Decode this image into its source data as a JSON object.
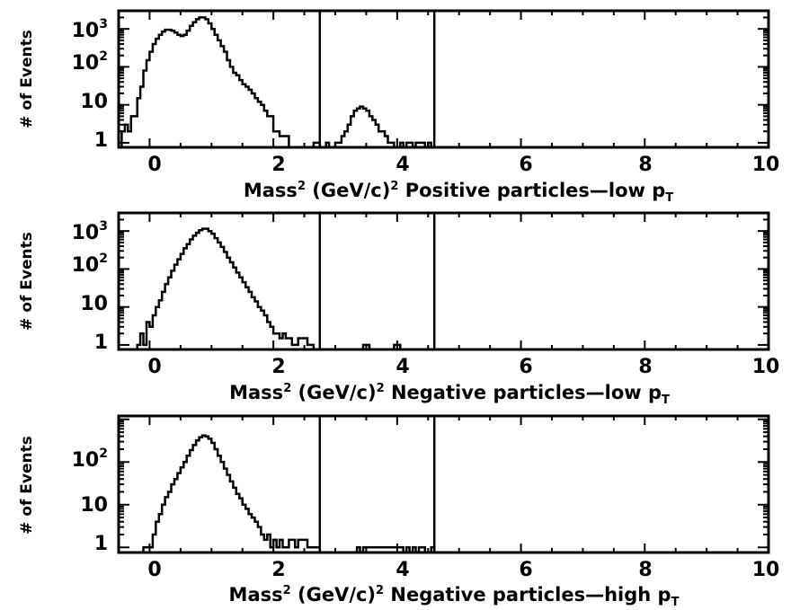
{
  "chart_data": [
    {
      "type": "histogram",
      "xlabel": "Mass² (GeV/c)² Positive particles—low pT",
      "xlabel_parts": {
        "a": "Mass",
        "b": "2",
        "c": " (GeV/c)",
        "d": "2",
        "e": " Positive particles—low p",
        "f": "T"
      },
      "ylabel": "# of Events",
      "xlim": [
        -0.5,
        10
      ],
      "ylim": [
        1,
        3000
      ],
      "log_y": true,
      "x_ticks": [
        "0",
        "2",
        "4",
        "6",
        "8",
        "10"
      ],
      "y_ticks": [
        {
          "base": "10",
          "exp": "3"
        },
        {
          "base": "10",
          "exp": "2"
        },
        {
          "base": "10",
          "exp": ""
        },
        {
          "base": "1",
          "exp": ""
        }
      ],
      "cut_lines": [
        2.75,
        4.6
      ],
      "bin_width": 0.05,
      "bins": [
        [
          -0.45,
          2
        ],
        [
          -0.4,
          3
        ],
        [
          -0.35,
          2
        ],
        [
          -0.3,
          5
        ],
        [
          -0.25,
          5
        ],
        [
          -0.2,
          15
        ],
        [
          -0.15,
          30
        ],
        [
          -0.1,
          80
        ],
        [
          -0.05,
          150
        ],
        [
          0.0,
          250
        ],
        [
          0.05,
          400
        ],
        [
          0.1,
          550
        ],
        [
          0.15,
          700
        ],
        [
          0.2,
          850
        ],
        [
          0.25,
          950
        ],
        [
          0.3,
          950
        ],
        [
          0.35,
          900
        ],
        [
          0.4,
          800
        ],
        [
          0.45,
          700
        ],
        [
          0.5,
          650
        ],
        [
          0.55,
          700
        ],
        [
          0.6,
          900
        ],
        [
          0.65,
          1200
        ],
        [
          0.7,
          1500
        ],
        [
          0.75,
          1800
        ],
        [
          0.8,
          2000
        ],
        [
          0.85,
          2000
        ],
        [
          0.9,
          1800
        ],
        [
          0.95,
          1400
        ],
        [
          1.0,
          1000
        ],
        [
          1.05,
          700
        ],
        [
          1.1,
          500
        ],
        [
          1.15,
          350
        ],
        [
          1.2,
          250
        ],
        [
          1.25,
          150
        ],
        [
          1.3,
          100
        ],
        [
          1.35,
          70
        ],
        [
          1.4,
          60
        ],
        [
          1.45,
          45
        ],
        [
          1.5,
          35
        ],
        [
          1.55,
          30
        ],
        [
          1.6,
          25
        ],
        [
          1.65,
          20
        ],
        [
          1.7,
          15
        ],
        [
          1.75,
          12
        ],
        [
          1.8,
          10
        ],
        [
          1.85,
          7
        ],
        [
          1.9,
          5
        ],
        [
          1.95,
          5
        ],
        [
          2.0,
          2
        ],
        [
          2.05,
          2
        ],
        [
          2.1,
          1.5
        ],
        [
          2.15,
          1.5
        ],
        [
          2.2,
          1.5
        ],
        [
          2.65,
          1
        ],
        [
          2.7,
          1
        ],
        [
          2.85,
          1
        ],
        [
          3.0,
          1
        ],
        [
          3.05,
          1
        ],
        [
          3.1,
          1.5
        ],
        [
          3.15,
          2
        ],
        [
          3.2,
          3
        ],
        [
          3.25,
          5
        ],
        [
          3.3,
          7
        ],
        [
          3.35,
          8
        ],
        [
          3.4,
          9
        ],
        [
          3.45,
          8
        ],
        [
          3.5,
          7
        ],
        [
          3.55,
          5
        ],
        [
          3.6,
          4
        ],
        [
          3.65,
          3
        ],
        [
          3.7,
          2
        ],
        [
          3.75,
          2
        ],
        [
          3.8,
          1.5
        ],
        [
          3.85,
          1
        ],
        [
          3.9,
          1
        ],
        [
          4.05,
          1
        ],
        [
          4.15,
          1
        ],
        [
          4.2,
          1
        ],
        [
          4.3,
          1
        ],
        [
          4.35,
          1
        ],
        [
          4.4,
          1
        ],
        [
          4.5,
          1
        ]
      ]
    },
    {
      "type": "histogram",
      "xlabel": "Mass² (GeV/c)² Negative particles—low pT",
      "xlabel_parts": {
        "a": "Mass",
        "b": "2",
        "c": " (GeV/c)",
        "d": "2",
        "e": " Negative particles—low p",
        "f": "T"
      },
      "ylabel": "# of Events",
      "xlim": [
        -0.5,
        10
      ],
      "ylim": [
        1,
        3000
      ],
      "log_y": true,
      "x_ticks": [
        "0",
        "2",
        "4",
        "6",
        "8",
        "10"
      ],
      "y_ticks": [
        {
          "base": "10",
          "exp": "3"
        },
        {
          "base": "10",
          "exp": "2"
        },
        {
          "base": "10",
          "exp": ""
        },
        {
          "base": "1",
          "exp": ""
        }
      ],
      "cut_lines": [
        2.75,
        4.6
      ],
      "bin_width": 0.05,
      "bins": [
        [
          -0.2,
          1
        ],
        [
          -0.15,
          2
        ],
        [
          -0.1,
          1
        ],
        [
          -0.05,
          4
        ],
        [
          0.0,
          3
        ],
        [
          0.05,
          6
        ],
        [
          0.1,
          10
        ],
        [
          0.15,
          15
        ],
        [
          0.2,
          25
        ],
        [
          0.25,
          40
        ],
        [
          0.3,
          60
        ],
        [
          0.35,
          90
        ],
        [
          0.4,
          130
        ],
        [
          0.45,
          180
        ],
        [
          0.5,
          250
        ],
        [
          0.55,
          350
        ],
        [
          0.6,
          450
        ],
        [
          0.65,
          600
        ],
        [
          0.7,
          750
        ],
        [
          0.75,
          900
        ],
        [
          0.8,
          1050
        ],
        [
          0.85,
          1150
        ],
        [
          0.9,
          1150
        ],
        [
          0.95,
          1000
        ],
        [
          1.0,
          850
        ],
        [
          1.05,
          650
        ],
        [
          1.1,
          500
        ],
        [
          1.15,
          380
        ],
        [
          1.2,
          280
        ],
        [
          1.25,
          200
        ],
        [
          1.3,
          150
        ],
        [
          1.35,
          110
        ],
        [
          1.4,
          80
        ],
        [
          1.45,
          60
        ],
        [
          1.5,
          45
        ],
        [
          1.55,
          33
        ],
        [
          1.6,
          25
        ],
        [
          1.65,
          18
        ],
        [
          1.7,
          14
        ],
        [
          1.75,
          10
        ],
        [
          1.8,
          8
        ],
        [
          1.85,
          6
        ],
        [
          1.9,
          4
        ],
        [
          1.95,
          3
        ],
        [
          2.0,
          2
        ],
        [
          2.05,
          2
        ],
        [
          2.1,
          1.5
        ],
        [
          2.15,
          2
        ],
        [
          2.2,
          1.5
        ],
        [
          2.25,
          1.5
        ],
        [
          2.3,
          1
        ],
        [
          2.35,
          1
        ],
        [
          2.4,
          1.5
        ],
        [
          2.45,
          1.5
        ],
        [
          2.5,
          1.5
        ],
        [
          2.55,
          1
        ],
        [
          2.6,
          1
        ],
        [
          3.45,
          1
        ],
        [
          3.5,
          1
        ],
        [
          3.95,
          1
        ],
        [
          4.0,
          1
        ]
      ]
    },
    {
      "type": "histogram",
      "xlabel": "Mass² (GeV/c)² Negative particles—high pT",
      "xlabel_parts": {
        "a": "Mass",
        "b": "2",
        "c": " (GeV/c)",
        "d": "2",
        "e": " Negative particles—high p",
        "f": "T"
      },
      "ylabel": "# of Events",
      "xlim": [
        -0.5,
        10
      ],
      "ylim": [
        1,
        1200
      ],
      "log_y": true,
      "x_ticks": [
        "0",
        "2",
        "4",
        "6",
        "8",
        "10"
      ],
      "y_ticks": [
        {
          "base": "10",
          "exp": "2"
        },
        {
          "base": "10",
          "exp": ""
        },
        {
          "base": "1",
          "exp": ""
        }
      ],
      "cut_lines": [
        2.75,
        4.6
      ],
      "bin_width": 0.05,
      "bins": [
        [
          -0.1,
          1
        ],
        [
          -0.05,
          1
        ],
        [
          0.0,
          1
        ],
        [
          0.05,
          2
        ],
        [
          0.1,
          4
        ],
        [
          0.15,
          6
        ],
        [
          0.2,
          10
        ],
        [
          0.25,
          15
        ],
        [
          0.3,
          20
        ],
        [
          0.35,
          30
        ],
        [
          0.4,
          40
        ],
        [
          0.45,
          55
        ],
        [
          0.5,
          75
        ],
        [
          0.55,
          100
        ],
        [
          0.6,
          140
        ],
        [
          0.65,
          190
        ],
        [
          0.7,
          250
        ],
        [
          0.75,
          320
        ],
        [
          0.8,
          380
        ],
        [
          0.85,
          420
        ],
        [
          0.9,
          400
        ],
        [
          0.95,
          350
        ],
        [
          1.0,
          280
        ],
        [
          1.05,
          200
        ],
        [
          1.1,
          140
        ],
        [
          1.15,
          100
        ],
        [
          1.2,
          70
        ],
        [
          1.25,
          50
        ],
        [
          1.3,
          35
        ],
        [
          1.35,
          25
        ],
        [
          1.4,
          18
        ],
        [
          1.45,
          14
        ],
        [
          1.5,
          10
        ],
        [
          1.55,
          8
        ],
        [
          1.6,
          6
        ],
        [
          1.65,
          5
        ],
        [
          1.7,
          4
        ],
        [
          1.75,
          3
        ],
        [
          1.8,
          2
        ],
        [
          1.85,
          1.5
        ],
        [
          1.9,
          2
        ],
        [
          1.95,
          1
        ],
        [
          2.0,
          1.5
        ],
        [
          2.05,
          1
        ],
        [
          2.1,
          1.5
        ],
        [
          2.15,
          1
        ],
        [
          2.2,
          1
        ],
        [
          2.25,
          1.5
        ],
        [
          2.3,
          1.5
        ],
        [
          2.35,
          1
        ],
        [
          2.4,
          1.5
        ],
        [
          2.45,
          1.5
        ],
        [
          2.5,
          1.5
        ],
        [
          2.55,
          1
        ],
        [
          2.6,
          1
        ],
        [
          2.65,
          1
        ],
        [
          2.7,
          1
        ],
        [
          3.35,
          1
        ],
        [
          3.45,
          1
        ],
        [
          3.5,
          1
        ],
        [
          3.55,
          1
        ],
        [
          3.6,
          1
        ],
        [
          3.65,
          1
        ],
        [
          3.7,
          1
        ],
        [
          3.75,
          1
        ],
        [
          3.8,
          1
        ],
        [
          3.85,
          1
        ],
        [
          3.9,
          1
        ],
        [
          3.95,
          1
        ],
        [
          4.0,
          1
        ],
        [
          4.05,
          1
        ],
        [
          4.15,
          1
        ],
        [
          4.25,
          1
        ],
        [
          4.35,
          1
        ],
        [
          4.4,
          1
        ],
        [
          4.55,
          1
        ]
      ]
    }
  ]
}
